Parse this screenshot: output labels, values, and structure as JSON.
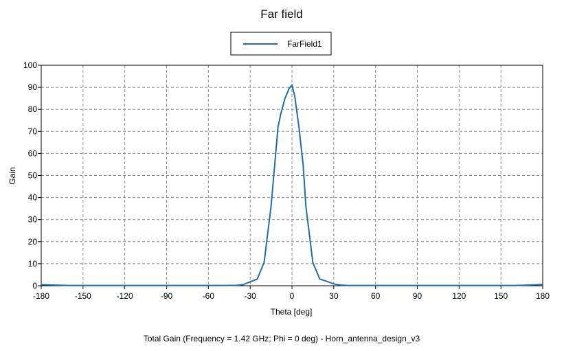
{
  "chart_data": {
    "type": "line",
    "title": "Far field",
    "xlabel": "Theta [deg]",
    "ylabel": "Gain",
    "footer": "Total Gain (Frequency = 1.42 GHz; Phi = 0 deg) - Horn_antenna_design_v3",
    "xlim": [
      -180,
      180
    ],
    "ylim": [
      0,
      100
    ],
    "xticks": [
      -180,
      -150,
      -120,
      -90,
      -60,
      -30,
      0,
      30,
      60,
      90,
      120,
      150,
      180
    ],
    "yticks": [
      0,
      10,
      20,
      30,
      40,
      50,
      60,
      70,
      80,
      90,
      100
    ],
    "grid": true,
    "legend_position": "top-center",
    "series": [
      {
        "name": "FarField1",
        "color": "#1f6fa8",
        "x": [
          -180,
          -170,
          -160,
          -150,
          -140,
          -120,
          -100,
          -80,
          -60,
          -50,
          -40,
          -35,
          -30,
          -25,
          -20,
          -15,
          -10,
          -8,
          -5,
          -2,
          0,
          2,
          5,
          8,
          10,
          15,
          20,
          25,
          30,
          35,
          40,
          60,
          80,
          100,
          120,
          140,
          160,
          170,
          180
        ],
        "y": [
          0.5,
          0.3,
          0.1,
          0.1,
          0.1,
          0.1,
          0.1,
          0.1,
          0.1,
          0.1,
          0.2,
          0.5,
          1.8,
          3.0,
          10.5,
          36.0,
          72.0,
          78.0,
          85.0,
          89.5,
          91.0,
          86.0,
          72.0,
          55.0,
          36.0,
          10.5,
          3.0,
          2.0,
          0.8,
          0.3,
          0.1,
          0.1,
          0.1,
          0.1,
          0.1,
          0.1,
          0.1,
          0.3,
          0.6
        ]
      }
    ]
  }
}
